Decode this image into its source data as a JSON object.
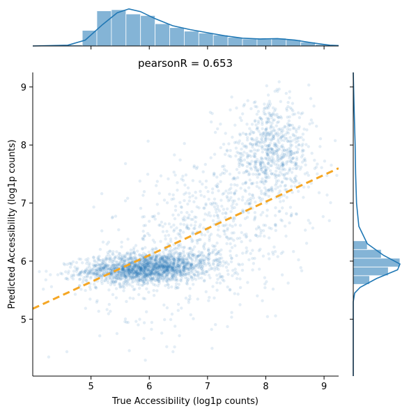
{
  "chart_data": {
    "type": "scatter",
    "title": "pearsonR = 0.653",
    "xlabel": "True Accessibility (log1p counts)",
    "ylabel": "Predicted Accessibility (log1p counts)",
    "xlim": [
      4.0,
      9.25
    ],
    "ylim": [
      4.02,
      9.25
    ],
    "xticks": [
      "5",
      "6",
      "7",
      "8",
      "9"
    ],
    "yticks": [
      "5",
      "6",
      "7",
      "8",
      "9"
    ],
    "grid": false,
    "point_color": "#1f77b4",
    "point_alpha": 0.12,
    "point_clusters": [
      {
        "name": "main",
        "center": [
          5.95,
          5.88
        ],
        "spread": [
          0.55,
          0.13
        ],
        "weight": 0.55
      },
      {
        "name": "tail",
        "center": [
          7.0,
          6.5
        ],
        "spread": [
          0.9,
          0.7
        ],
        "weight": 0.25
      },
      {
        "name": "upper",
        "center": [
          8.1,
          7.9
        ],
        "spread": [
          0.35,
          0.4
        ],
        "weight": 0.2
      }
    ],
    "regression_line": {
      "x": [
        4.0,
        9.25
      ],
      "y": [
        5.18,
        7.6
      ],
      "color": "#f5a623",
      "style": "dashed"
    },
    "marginal_x": {
      "bin_edges": [
        4.6,
        4.85,
        5.1,
        5.35,
        5.6,
        5.85,
        6.1,
        6.35,
        6.6,
        6.85,
        7.1,
        7.35,
        7.6,
        7.85,
        8.1,
        8.35,
        8.6,
        8.85,
        9.1
      ],
      "counts": [
        0.03,
        0.4,
        0.9,
        0.93,
        0.82,
        0.78,
        0.57,
        0.47,
        0.38,
        0.33,
        0.28,
        0.22,
        0.18,
        0.18,
        0.2,
        0.16,
        0.1,
        0.04
      ],
      "kde_x": [
        4.0,
        4.6,
        4.9,
        5.2,
        5.45,
        5.65,
        5.85,
        6.1,
        6.4,
        6.7,
        7.0,
        7.3,
        7.6,
        7.9,
        8.2,
        8.5,
        8.8,
        9.1,
        9.25
      ],
      "kde_y": [
        0.0,
        0.02,
        0.15,
        0.55,
        0.85,
        0.95,
        0.88,
        0.7,
        0.52,
        0.42,
        0.34,
        0.26,
        0.2,
        0.18,
        0.19,
        0.15,
        0.08,
        0.02,
        0.01
      ]
    },
    "marginal_y": {
      "bin_edges": [
        5.6,
        5.75,
        5.9,
        6.05,
        6.2,
        6.35
      ],
      "counts": [
        0.35,
        0.75,
        1.0,
        0.6,
        0.3
      ],
      "kde_y": [
        9.25,
        8.6,
        8.0,
        7.5,
        7.0,
        6.6,
        6.3,
        6.1,
        5.95,
        5.85,
        5.7,
        5.55,
        5.45,
        5.3,
        4.02
      ],
      "kde_x": [
        0.0,
        0.02,
        0.04,
        0.05,
        0.07,
        0.12,
        0.3,
        0.65,
        1.0,
        0.95,
        0.5,
        0.15,
        0.03,
        0.0,
        0.0
      ]
    }
  }
}
